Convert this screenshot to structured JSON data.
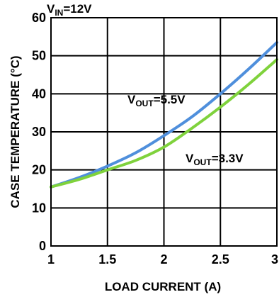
{
  "chart_data": {
    "type": "line",
    "annotation_top": {
      "main": "V",
      "sub": "IN",
      "rest": "=12V"
    },
    "xlabel": "LOAD CURRENT (A)",
    "ylabel": "CASE TEMPERATURE (°C)",
    "xlim": [
      1,
      3
    ],
    "ylim": [
      0,
      60
    ],
    "x_ticks": [
      "1",
      "1.5",
      "2",
      "2.5",
      "3"
    ],
    "y_ticks": [
      "0",
      "10",
      "20",
      "30",
      "40",
      "50",
      "60"
    ],
    "grid": true,
    "series": [
      {
        "name": "VOUT=5.5V",
        "label": {
          "main": "V",
          "sub": "OUT",
          "rest": "=5.5V"
        },
        "color": "#4f8fdc",
        "x": [
          1.0,
          1.25,
          1.5,
          1.75,
          2.0,
          2.25,
          2.5,
          2.75,
          3.0
        ],
        "y": [
          15.5,
          18.0,
          21.0,
          24.5,
          29.0,
          34.0,
          40.0,
          46.5,
          53.5
        ]
      },
      {
        "name": "VOUT=3.3V",
        "label": {
          "main": "V",
          "sub": "OUT",
          "rest": "=3.3V"
        },
        "color": "#7fd23c",
        "x": [
          1.0,
          1.25,
          1.5,
          1.75,
          2.0,
          2.25,
          2.5,
          2.75,
          3.0
        ],
        "y": [
          15.5,
          17.5,
          20.0,
          22.5,
          26.0,
          31.0,
          36.5,
          42.5,
          49.0
        ]
      }
    ]
  }
}
